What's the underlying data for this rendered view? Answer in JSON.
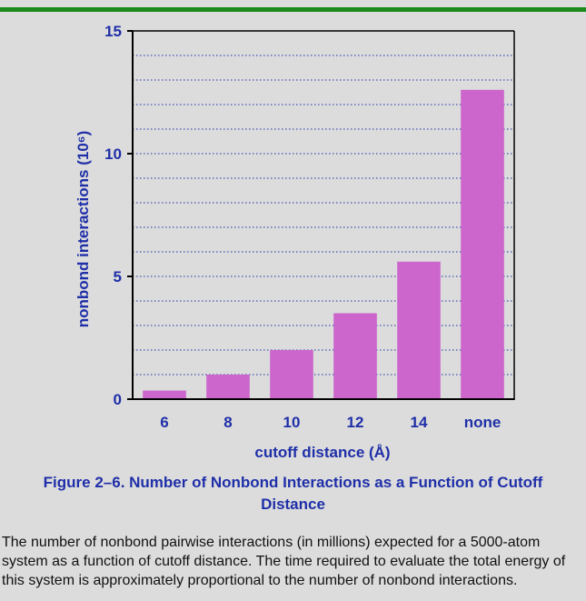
{
  "chart_data": {
    "type": "bar",
    "categories": [
      "6",
      "8",
      "10",
      "12",
      "14",
      "none"
    ],
    "values": [
      0.35,
      1.0,
      2.0,
      3.5,
      5.6,
      12.6
    ],
    "ylim": [
      0,
      15
    ],
    "yticks": [
      "0",
      "5",
      "10",
      "15"
    ],
    "xlabel": "cutoff distance (Å)",
    "ylabel": "nonbond interactions (10⁶)",
    "grid": "horizontal dotted",
    "bar_color": "#cc66cc",
    "axis_text_color": "#1f2fa8"
  },
  "figure": {
    "title": "Figure 2–6. Number of Nonbond Interactions as a Function of Cutoff Distance",
    "caption": "The number of nonbond pairwise interactions (in millions) expected for a 5000-atom system as a function of cutoff distance. The time required to evaluate the total energy of this system is approximately proportional to the number of nonbond interactions."
  },
  "accent_color": "#1a8a1a"
}
